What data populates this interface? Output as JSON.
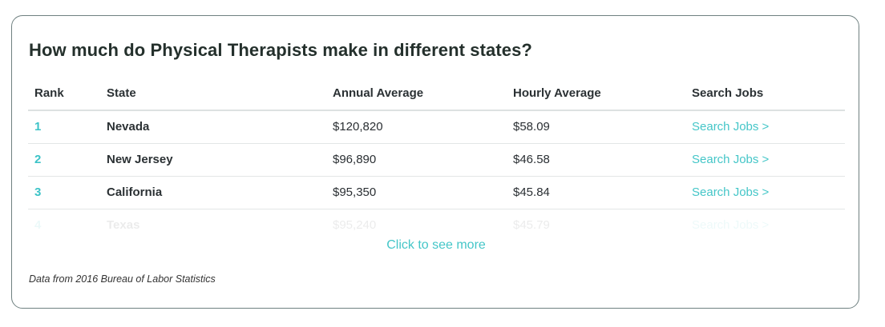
{
  "card": {
    "title": "How much do Physical Therapists make in different states?",
    "more_label": "Click to see more",
    "source_note": "Data from 2016 Bureau of Labor Statistics"
  },
  "table": {
    "headers": {
      "rank": "Rank",
      "state": "State",
      "annual": "Annual Average",
      "hourly": "Hourly Average",
      "search": "Search Jobs"
    },
    "rows": [
      {
        "rank": "1",
        "state": "Nevada",
        "annual": "$120,820",
        "hourly": "$58.09",
        "link": "Search Jobs >"
      },
      {
        "rank": "2",
        "state": "New Jersey",
        "annual": "$96,890",
        "hourly": "$46.58",
        "link": "Search Jobs >"
      },
      {
        "rank": "3",
        "state": "California",
        "annual": "$95,350",
        "hourly": "$45.84",
        "link": "Search Jobs >"
      },
      {
        "rank": "4",
        "state": "Texas",
        "annual": "$95,240",
        "hourly": "$45.79",
        "link": "Search Jobs >"
      }
    ]
  },
  "colors": {
    "accent": "#44c6c8",
    "border": "#6f8080",
    "title": "#24302c"
  }
}
